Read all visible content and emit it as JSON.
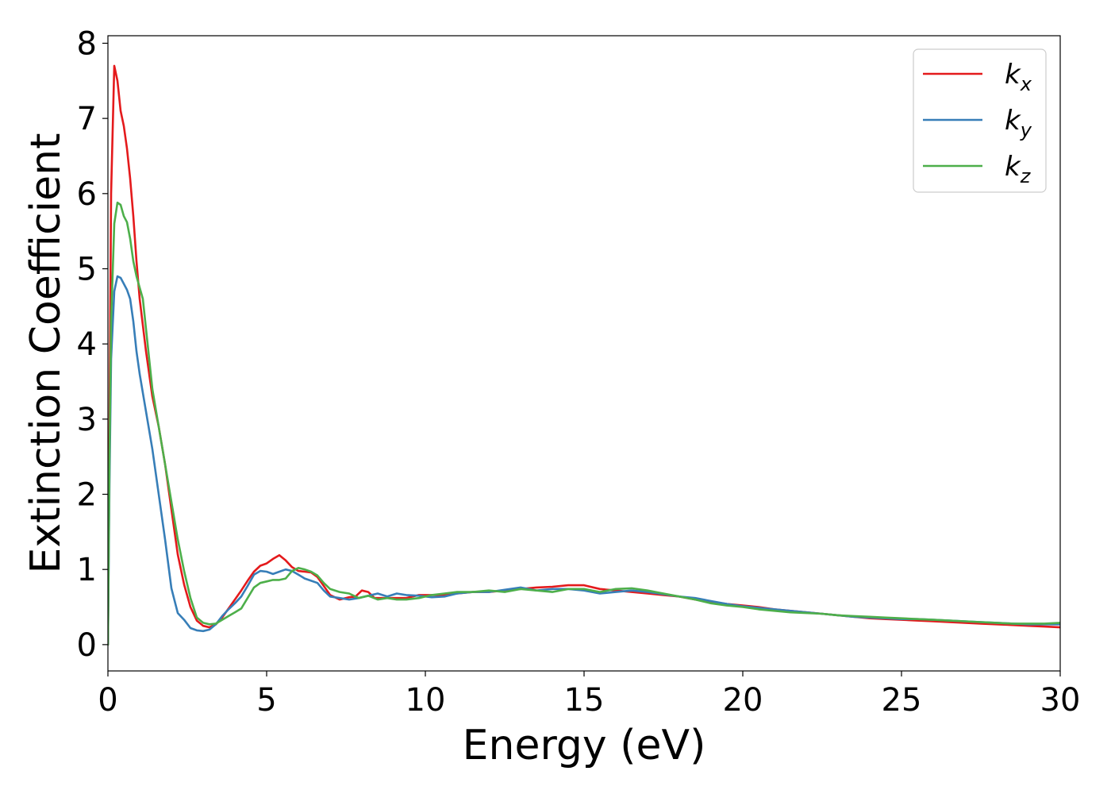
{
  "chart_data": {
    "type": "line",
    "xlabel": "Energy (eV)",
    "ylabel": "Extinction Coefficient",
    "xlim": [
      0,
      30
    ],
    "ylim": [
      -0.35,
      8.1
    ],
    "xticks": [
      0,
      5,
      10,
      15,
      20,
      25,
      30
    ],
    "yticks": [
      0,
      1,
      2,
      3,
      4,
      5,
      6,
      7,
      8
    ],
    "grid": false,
    "legend_position": "top-right",
    "series": [
      {
        "name": "k_x",
        "label_base": "k",
        "label_sub": "x",
        "color": "#e41a1c",
        "points": [
          [
            0,
            0
          ],
          [
            0.05,
            3.0
          ],
          [
            0.1,
            6.0
          ],
          [
            0.2,
            7.7
          ],
          [
            0.3,
            7.5
          ],
          [
            0.4,
            7.1
          ],
          [
            0.5,
            6.9
          ],
          [
            0.6,
            6.6
          ],
          [
            0.7,
            6.2
          ],
          [
            0.8,
            5.7
          ],
          [
            0.9,
            5.1
          ],
          [
            1.0,
            4.6
          ],
          [
            1.2,
            3.9
          ],
          [
            1.4,
            3.3
          ],
          [
            1.6,
            2.9
          ],
          [
            1.8,
            2.4
          ],
          [
            2.0,
            1.8
          ],
          [
            2.2,
            1.2
          ],
          [
            2.4,
            0.8
          ],
          [
            2.6,
            0.5
          ],
          [
            2.8,
            0.32
          ],
          [
            3.0,
            0.25
          ],
          [
            3.2,
            0.23
          ],
          [
            3.4,
            0.27
          ],
          [
            3.6,
            0.36
          ],
          [
            3.8,
            0.48
          ],
          [
            4.0,
            0.6
          ],
          [
            4.2,
            0.72
          ],
          [
            4.4,
            0.85
          ],
          [
            4.6,
            0.97
          ],
          [
            4.8,
            1.05
          ],
          [
            5.0,
            1.08
          ],
          [
            5.2,
            1.14
          ],
          [
            5.4,
            1.19
          ],
          [
            5.6,
            1.12
          ],
          [
            5.8,
            1.03
          ],
          [
            6.0,
            0.98
          ],
          [
            6.2,
            0.97
          ],
          [
            6.4,
            0.96
          ],
          [
            6.6,
            0.9
          ],
          [
            6.8,
            0.78
          ],
          [
            7.0,
            0.66
          ],
          [
            7.3,
            0.6
          ],
          [
            7.6,
            0.63
          ],
          [
            7.8,
            0.64
          ],
          [
            8.0,
            0.72
          ],
          [
            8.2,
            0.7
          ],
          [
            8.4,
            0.62
          ],
          [
            8.7,
            0.62
          ],
          [
            9.0,
            0.62
          ],
          [
            9.4,
            0.62
          ],
          [
            9.8,
            0.66
          ],
          [
            10.2,
            0.66
          ],
          [
            10.6,
            0.66
          ],
          [
            11.0,
            0.68
          ],
          [
            11.5,
            0.7
          ],
          [
            12.0,
            0.7
          ],
          [
            12.5,
            0.72
          ],
          [
            13.0,
            0.74
          ],
          [
            13.5,
            0.76
          ],
          [
            14.0,
            0.77
          ],
          [
            14.5,
            0.79
          ],
          [
            15.0,
            0.79
          ],
          [
            15.5,
            0.74
          ],
          [
            16.0,
            0.72
          ],
          [
            16.5,
            0.7
          ],
          [
            17.0,
            0.68
          ],
          [
            17.5,
            0.66
          ],
          [
            18.0,
            0.64
          ],
          [
            18.5,
            0.6
          ],
          [
            19.0,
            0.57
          ],
          [
            19.5,
            0.54
          ],
          [
            20.0,
            0.52
          ],
          [
            20.5,
            0.5
          ],
          [
            21.0,
            0.47
          ],
          [
            21.5,
            0.45
          ],
          [
            22.0,
            0.43
          ],
          [
            22.5,
            0.41
          ],
          [
            23.0,
            0.39
          ],
          [
            23.5,
            0.37
          ],
          [
            24.0,
            0.35
          ],
          [
            24.5,
            0.34
          ],
          [
            25.0,
            0.33
          ],
          [
            25.5,
            0.32
          ],
          [
            26.0,
            0.31
          ],
          [
            26.5,
            0.3
          ],
          [
            27.0,
            0.29
          ],
          [
            27.5,
            0.28
          ],
          [
            28.0,
            0.27
          ],
          [
            28.5,
            0.26
          ],
          [
            29.0,
            0.25
          ],
          [
            29.5,
            0.24
          ],
          [
            30.0,
            0.23
          ]
        ]
      },
      {
        "name": "k_y",
        "label_base": "k",
        "label_sub": "y",
        "color": "#377eb8",
        "points": [
          [
            0,
            0
          ],
          [
            0.05,
            2.2
          ],
          [
            0.1,
            3.8
          ],
          [
            0.2,
            4.7
          ],
          [
            0.3,
            4.9
          ],
          [
            0.4,
            4.88
          ],
          [
            0.5,
            4.8
          ],
          [
            0.6,
            4.72
          ],
          [
            0.7,
            4.6
          ],
          [
            0.8,
            4.3
          ],
          [
            0.9,
            3.9
          ],
          [
            1.0,
            3.6
          ],
          [
            1.2,
            3.1
          ],
          [
            1.4,
            2.6
          ],
          [
            1.6,
            2.0
          ],
          [
            1.8,
            1.4
          ],
          [
            2.0,
            0.75
          ],
          [
            2.2,
            0.42
          ],
          [
            2.4,
            0.33
          ],
          [
            2.6,
            0.22
          ],
          [
            2.8,
            0.19
          ],
          [
            3.0,
            0.18
          ],
          [
            3.2,
            0.2
          ],
          [
            3.4,
            0.27
          ],
          [
            3.6,
            0.38
          ],
          [
            3.8,
            0.47
          ],
          [
            4.0,
            0.55
          ],
          [
            4.2,
            0.64
          ],
          [
            4.4,
            0.78
          ],
          [
            4.6,
            0.93
          ],
          [
            4.8,
            0.98
          ],
          [
            5.0,
            0.97
          ],
          [
            5.2,
            0.94
          ],
          [
            5.4,
            0.97
          ],
          [
            5.6,
            1.0
          ],
          [
            5.8,
            0.98
          ],
          [
            6.0,
            0.93
          ],
          [
            6.2,
            0.88
          ],
          [
            6.4,
            0.85
          ],
          [
            6.6,
            0.82
          ],
          [
            6.8,
            0.72
          ],
          [
            7.0,
            0.64
          ],
          [
            7.3,
            0.62
          ],
          [
            7.6,
            0.6
          ],
          [
            7.9,
            0.62
          ],
          [
            8.2,
            0.65
          ],
          [
            8.5,
            0.68
          ],
          [
            8.8,
            0.64
          ],
          [
            9.1,
            0.68
          ],
          [
            9.4,
            0.66
          ],
          [
            9.8,
            0.65
          ],
          [
            10.2,
            0.63
          ],
          [
            10.6,
            0.64
          ],
          [
            11.0,
            0.68
          ],
          [
            11.5,
            0.7
          ],
          [
            12.0,
            0.7
          ],
          [
            12.5,
            0.73
          ],
          [
            13.0,
            0.76
          ],
          [
            13.5,
            0.72
          ],
          [
            14.0,
            0.74
          ],
          [
            14.5,
            0.74
          ],
          [
            15.0,
            0.72
          ],
          [
            15.5,
            0.68
          ],
          [
            16.0,
            0.7
          ],
          [
            16.5,
            0.72
          ],
          [
            17.0,
            0.7
          ],
          [
            17.5,
            0.67
          ],
          [
            18.0,
            0.64
          ],
          [
            18.5,
            0.62
          ],
          [
            19.0,
            0.58
          ],
          [
            19.5,
            0.54
          ],
          [
            20.0,
            0.51
          ],
          [
            20.5,
            0.49
          ],
          [
            21.0,
            0.47
          ],
          [
            21.5,
            0.45
          ],
          [
            22.0,
            0.43
          ],
          [
            22.5,
            0.41
          ],
          [
            23.0,
            0.39
          ],
          [
            23.5,
            0.37
          ],
          [
            24.0,
            0.36
          ],
          [
            24.5,
            0.35
          ],
          [
            25.0,
            0.34
          ],
          [
            25.5,
            0.34
          ],
          [
            26.0,
            0.33
          ],
          [
            26.5,
            0.32
          ],
          [
            27.0,
            0.31
          ],
          [
            27.5,
            0.3
          ],
          [
            28.0,
            0.29
          ],
          [
            28.5,
            0.28
          ],
          [
            29.0,
            0.27
          ],
          [
            29.5,
            0.27
          ],
          [
            30.0,
            0.27
          ]
        ]
      },
      {
        "name": "k_z",
        "label_base": "k",
        "label_sub": "z",
        "color": "#4daf4a",
        "points": [
          [
            0,
            0
          ],
          [
            0.05,
            2.5
          ],
          [
            0.1,
            4.3
          ],
          [
            0.2,
            5.6
          ],
          [
            0.3,
            5.88
          ],
          [
            0.4,
            5.85
          ],
          [
            0.5,
            5.7
          ],
          [
            0.6,
            5.62
          ],
          [
            0.7,
            5.4
          ],
          [
            0.8,
            5.1
          ],
          [
            0.9,
            4.9
          ],
          [
            1.0,
            4.75
          ],
          [
            1.1,
            4.6
          ],
          [
            1.2,
            4.2
          ],
          [
            1.4,
            3.4
          ],
          [
            1.6,
            2.9
          ],
          [
            1.8,
            2.4
          ],
          [
            2.0,
            1.9
          ],
          [
            2.2,
            1.4
          ],
          [
            2.4,
            0.98
          ],
          [
            2.6,
            0.62
          ],
          [
            2.8,
            0.36
          ],
          [
            3.0,
            0.29
          ],
          [
            3.2,
            0.27
          ],
          [
            3.4,
            0.28
          ],
          [
            3.6,
            0.33
          ],
          [
            3.8,
            0.38
          ],
          [
            4.0,
            0.43
          ],
          [
            4.2,
            0.48
          ],
          [
            4.4,
            0.62
          ],
          [
            4.6,
            0.76
          ],
          [
            4.8,
            0.82
          ],
          [
            5.0,
            0.84
          ],
          [
            5.2,
            0.86
          ],
          [
            5.4,
            0.86
          ],
          [
            5.6,
            0.88
          ],
          [
            5.8,
            0.98
          ],
          [
            6.0,
            1.02
          ],
          [
            6.2,
            1.0
          ],
          [
            6.4,
            0.97
          ],
          [
            6.6,
            0.92
          ],
          [
            6.8,
            0.82
          ],
          [
            7.0,
            0.74
          ],
          [
            7.3,
            0.7
          ],
          [
            7.6,
            0.68
          ],
          [
            7.9,
            0.62
          ],
          [
            8.2,
            0.65
          ],
          [
            8.5,
            0.6
          ],
          [
            8.8,
            0.62
          ],
          [
            9.1,
            0.6
          ],
          [
            9.4,
            0.6
          ],
          [
            9.8,
            0.62
          ],
          [
            10.2,
            0.66
          ],
          [
            10.6,
            0.68
          ],
          [
            11.0,
            0.7
          ],
          [
            11.5,
            0.7
          ],
          [
            12.0,
            0.72
          ],
          [
            12.5,
            0.7
          ],
          [
            13.0,
            0.74
          ],
          [
            13.5,
            0.72
          ],
          [
            14.0,
            0.7
          ],
          [
            14.5,
            0.74
          ],
          [
            15.0,
            0.74
          ],
          [
            15.5,
            0.7
          ],
          [
            16.0,
            0.74
          ],
          [
            16.5,
            0.75
          ],
          [
            17.0,
            0.72
          ],
          [
            17.5,
            0.68
          ],
          [
            18.0,
            0.64
          ],
          [
            18.5,
            0.6
          ],
          [
            19.0,
            0.55
          ],
          [
            19.5,
            0.52
          ],
          [
            20.0,
            0.5
          ],
          [
            20.5,
            0.47
          ],
          [
            21.0,
            0.45
          ],
          [
            21.5,
            0.43
          ],
          [
            22.0,
            0.42
          ],
          [
            22.5,
            0.41
          ],
          [
            23.0,
            0.39
          ],
          [
            23.5,
            0.38
          ],
          [
            24.0,
            0.37
          ],
          [
            24.5,
            0.36
          ],
          [
            25.0,
            0.35
          ],
          [
            25.5,
            0.34
          ],
          [
            26.0,
            0.33
          ],
          [
            26.5,
            0.32
          ],
          [
            27.0,
            0.31
          ],
          [
            27.5,
            0.3
          ],
          [
            28.0,
            0.29
          ],
          [
            28.5,
            0.28
          ],
          [
            29.0,
            0.28
          ],
          [
            29.5,
            0.28
          ],
          [
            30.0,
            0.29
          ]
        ]
      }
    ]
  }
}
